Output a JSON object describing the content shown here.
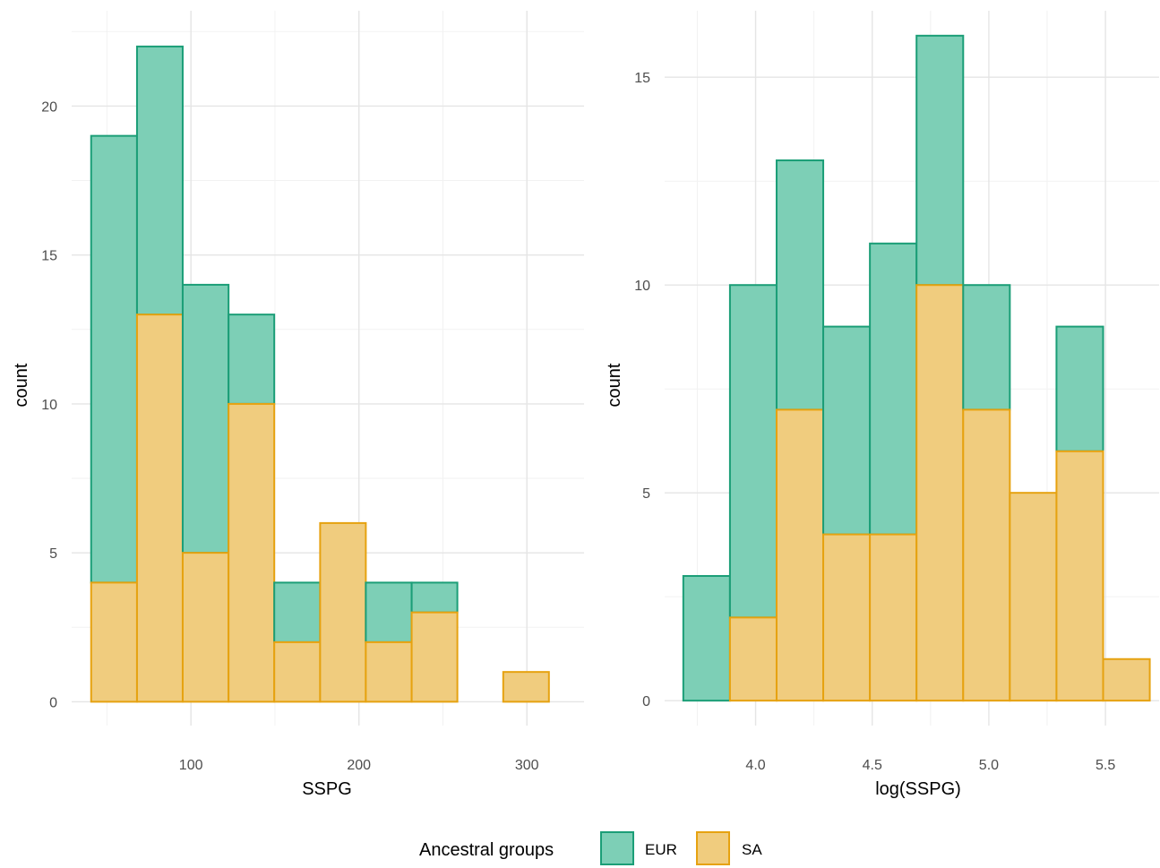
{
  "legend": {
    "title": "Ancestral groups",
    "entries": [
      {
        "name": "EUR",
        "fill": "#7dcfb6",
        "stroke": "#1b9e77"
      },
      {
        "name": "SA",
        "fill": "#f0cc7e",
        "stroke": "#e6a210"
      }
    ]
  },
  "chart_data": [
    {
      "type": "bar",
      "subtype": "histogram-stacked",
      "title": "",
      "xlabel": "SSPG",
      "ylabel": "count",
      "xlim": [
        29,
        334
      ],
      "ylim": [
        -0.8,
        23.2
      ],
      "xticks": [
        100,
        200,
        300
      ],
      "yticks": [
        0,
        5,
        10,
        15,
        20
      ],
      "xminor": [
        50,
        150,
        250
      ],
      "yminor": [
        2.5,
        7.5,
        12.5,
        17.5,
        22.5
      ],
      "grid": true,
      "bin_edges": [
        40.6,
        67.9,
        95.1,
        122.4,
        149.6,
        176.9,
        204.1,
        231.4,
        258.6,
        285.9,
        313.1
      ],
      "series": [
        {
          "name": "EUR",
          "values": [
            15,
            9,
            9,
            3,
            2,
            0,
            2,
            1,
            0,
            0
          ]
        },
        {
          "name": "SA",
          "values": [
            4,
            13,
            5,
            10,
            2,
            6,
            2,
            3,
            0,
            1
          ]
        }
      ]
    },
    {
      "type": "bar",
      "subtype": "histogram-stacked",
      "title": "",
      "xlabel": "log(SSPG)",
      "ylabel": "count",
      "xlim": [
        3.61,
        5.73
      ],
      "ylim": [
        -0.6,
        16.6
      ],
      "xticks": [
        4.0,
        4.5,
        5.0,
        5.5
      ],
      "xtick_labels": [
        "4.0",
        "4.5",
        "5.0",
        "5.5"
      ],
      "yticks": [
        0,
        5,
        10,
        15
      ],
      "xminor": [
        3.75,
        4.25,
        4.75,
        5.25
      ],
      "yminor": [
        2.5,
        7.5,
        12.5
      ],
      "grid": true,
      "bin_edges": [
        3.69,
        3.89,
        4.09,
        4.29,
        4.49,
        4.69,
        4.89,
        5.09,
        5.29,
        5.49,
        5.69
      ],
      "series": [
        {
          "name": "EUR",
          "values": [
            3,
            8,
            6,
            5,
            7,
            6,
            3,
            0,
            3,
            0
          ]
        },
        {
          "name": "SA",
          "values": [
            0,
            2,
            7,
            4,
            4,
            10,
            7,
            5,
            6,
            1
          ]
        }
      ]
    }
  ]
}
